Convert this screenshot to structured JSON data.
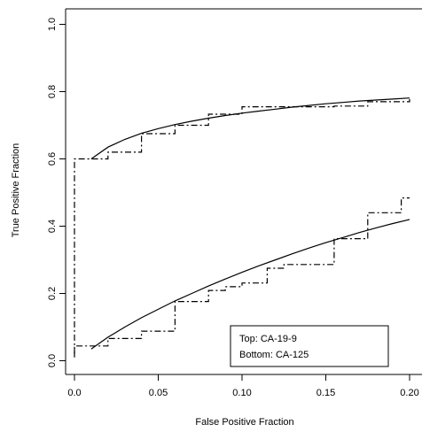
{
  "chart_data": {
    "type": "line",
    "title": "",
    "xlabel": "False Positive Fraction",
    "ylabel": "True Positive Fraction",
    "xlim": [
      -0.01,
      0.2
    ],
    "ylim": [
      -0.02,
      1.03
    ],
    "x_ticks": [
      {
        "value": 0.0,
        "label": "0.0"
      },
      {
        "value": 0.05,
        "label": "0.05"
      },
      {
        "value": 0.1,
        "label": "0.10"
      },
      {
        "value": 0.15,
        "label": "0.15"
      },
      {
        "value": 0.2,
        "label": "0.20"
      }
    ],
    "y_ticks": [
      {
        "value": 0.0,
        "label": "0.0"
      },
      {
        "value": 0.2,
        "label": "0.2"
      },
      {
        "value": 0.4,
        "label": "0.4"
      },
      {
        "value": 0.6,
        "label": "0.6"
      },
      {
        "value": 0.8,
        "label": "0.8"
      },
      {
        "value": 1.0,
        "label": "1.0"
      }
    ],
    "grid": false,
    "legend": {
      "placement": "bottom-right",
      "lines": [
        "Top: CA-19-9",
        "Bottom: CA-125"
      ]
    },
    "series": [
      {
        "style": "dashdot",
        "values": [
          [
            0.0,
            0.02
          ],
          [
            0.0,
            0.6
          ],
          [
            0.02,
            0.6
          ],
          [
            0.02,
            0.62
          ],
          [
            0.04,
            0.62
          ],
          [
            0.04,
            0.675
          ],
          [
            0.06,
            0.675
          ],
          [
            0.06,
            0.7
          ],
          [
            0.08,
            0.7
          ],
          [
            0.08,
            0.733
          ],
          [
            0.1,
            0.733
          ],
          [
            0.1,
            0.755
          ],
          [
            0.155,
            0.755
          ],
          [
            0.155,
            0.757
          ],
          [
            0.175,
            0.757
          ],
          [
            0.175,
            0.77
          ],
          [
            0.2,
            0.77
          ],
          [
            0.2,
            0.778
          ]
        ]
      },
      {
        "style": "solid",
        "values": [
          [
            0.01,
            0.6
          ],
          [
            0.02,
            0.635
          ],
          [
            0.03,
            0.658
          ],
          [
            0.04,
            0.676
          ],
          [
            0.05,
            0.69
          ],
          [
            0.06,
            0.702
          ],
          [
            0.07,
            0.712
          ],
          [
            0.08,
            0.721
          ],
          [
            0.09,
            0.729
          ],
          [
            0.1,
            0.736
          ],
          [
            0.11,
            0.742
          ],
          [
            0.12,
            0.748
          ],
          [
            0.13,
            0.754
          ],
          [
            0.14,
            0.759
          ],
          [
            0.15,
            0.764
          ],
          [
            0.16,
            0.768
          ],
          [
            0.17,
            0.772
          ],
          [
            0.18,
            0.775
          ],
          [
            0.19,
            0.778
          ],
          [
            0.2,
            0.781
          ]
        ]
      },
      {
        "style": "dashdot",
        "values": [
          [
            0.0,
            0.01
          ],
          [
            0.0,
            0.044
          ],
          [
            0.02,
            0.044
          ],
          [
            0.02,
            0.066
          ],
          [
            0.04,
            0.066
          ],
          [
            0.04,
            0.088
          ],
          [
            0.06,
            0.088
          ],
          [
            0.06,
            0.176
          ],
          [
            0.08,
            0.176
          ],
          [
            0.08,
            0.209
          ],
          [
            0.09,
            0.209
          ],
          [
            0.09,
            0.22
          ],
          [
            0.1,
            0.22
          ],
          [
            0.1,
            0.231
          ],
          [
            0.115,
            0.231
          ],
          [
            0.115,
            0.275
          ],
          [
            0.125,
            0.275
          ],
          [
            0.125,
            0.286
          ],
          [
            0.155,
            0.286
          ],
          [
            0.155,
            0.363
          ],
          [
            0.175,
            0.363
          ],
          [
            0.175,
            0.44
          ],
          [
            0.195,
            0.44
          ],
          [
            0.195,
            0.484
          ],
          [
            0.2,
            0.484
          ]
        ]
      },
      {
        "style": "solid",
        "values": [
          [
            0.01,
            0.035
          ],
          [
            0.02,
            0.07
          ],
          [
            0.03,
            0.1
          ],
          [
            0.04,
            0.128
          ],
          [
            0.05,
            0.153
          ],
          [
            0.06,
            0.178
          ],
          [
            0.07,
            0.2
          ],
          [
            0.08,
            0.222
          ],
          [
            0.09,
            0.243
          ],
          [
            0.1,
            0.263
          ],
          [
            0.11,
            0.282
          ],
          [
            0.12,
            0.3
          ],
          [
            0.13,
            0.318
          ],
          [
            0.14,
            0.335
          ],
          [
            0.15,
            0.351
          ],
          [
            0.16,
            0.366
          ],
          [
            0.17,
            0.381
          ],
          [
            0.18,
            0.395
          ],
          [
            0.19,
            0.408
          ],
          [
            0.2,
            0.42
          ]
        ]
      }
    ]
  }
}
